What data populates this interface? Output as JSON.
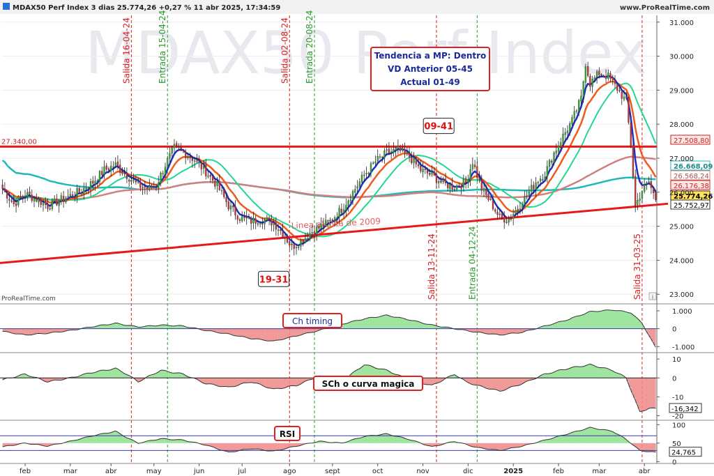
{
  "header": {
    "title": "MDAX50 Perf Index 3 dias 25.774,26 +0,27 % 11 abr 2025, 17:34:59",
    "site": "www.ProRealTime.com",
    "watermark": "MDAX50 Perf Index",
    "provider": "ProRealTime.com"
  },
  "info_box": {
    "line1": "Tendencia a MP: Dentro",
    "line2": "VD Anterior 05-45",
    "line3": "Actual 01-49"
  },
  "colors": {
    "up": "#33aa33",
    "down": "#cc3333",
    "wick": "#222222",
    "trendline": "#e81818",
    "ema_blue": "#1f2fc0",
    "ema_orange": "#f05a1a",
    "sma_green": "#22d890",
    "sma_cyan": "#22b8b8",
    "sma_salmon": "#d08080",
    "osc_pos": "#8fe08f",
    "osc_neg": "#ee8a8a",
    "vline_red": "#d62020",
    "vline_green": "#2a9a2a",
    "hline_blue": "#3a3aa8"
  },
  "chart_data": {
    "type": "candlestick",
    "title": "MDAX50 Perf Index 3 dias",
    "last_value": "25.774,26",
    "change": "+0,27 %",
    "timestamp": "11 abr 2025, 17:34:59",
    "x_labels": [
      "feb",
      "mar",
      "abr",
      "may",
      "jun",
      "jul",
      "ago",
      "sept",
      "oct",
      "nov",
      "dic",
      "2025",
      "feb",
      "mar",
      "abr"
    ],
    "x_label_index": [
      10,
      30,
      48,
      67,
      87,
      106,
      127,
      146,
      166,
      186,
      206,
      226,
      246,
      264,
      284
    ],
    "n_candles": 290,
    "y_axis": {
      "min": 22800,
      "max": 31200,
      "ticks": [
        23000,
        24000,
        25000,
        26000,
        27000,
        28000,
        29000,
        30000,
        31000
      ],
      "tick_labels": [
        "23.000",
        "24.000",
        "25.000",
        "26.000",
        "27.000",
        "28.000",
        "29.000",
        "30.000",
        "31.000"
      ]
    },
    "anchors": [
      [
        0,
        26100
      ],
      [
        5,
        25650
      ],
      [
        10,
        25950
      ],
      [
        15,
        25800
      ],
      [
        20,
        25600
      ],
      [
        25,
        25750
      ],
      [
        30,
        25900
      ],
      [
        35,
        26050
      ],
      [
        40,
        26300
      ],
      [
        45,
        26650
      ],
      [
        50,
        26800
      ],
      [
        55,
        26500
      ],
      [
        60,
        26200
      ],
      [
        65,
        26100
      ],
      [
        68,
        26200
      ],
      [
        72,
        26800
      ],
      [
        76,
        27300
      ],
      [
        80,
        27200
      ],
      [
        85,
        26950
      ],
      [
        90,
        26600
      ],
      [
        95,
        26200
      ],
      [
        100,
        25600
      ],
      [
        105,
        25250
      ],
      [
        110,
        25150
      ],
      [
        115,
        25200
      ],
      [
        120,
        25100
      ],
      [
        124,
        24800
      ],
      [
        128,
        24400
      ],
      [
        132,
        24550
      ],
      [
        136,
        24800
      ],
      [
        140,
        24950
      ],
      [
        145,
        25150
      ],
      [
        150,
        25500
      ],
      [
        155,
        26000
      ],
      [
        160,
        26500
      ],
      [
        165,
        26900
      ],
      [
        170,
        27150
      ],
      [
        175,
        27250
      ],
      [
        180,
        27050
      ],
      [
        185,
        26650
      ],
      [
        190,
        26500
      ],
      [
        195,
        26250
      ],
      [
        200,
        26150
      ],
      [
        205,
        26300
      ],
      [
        208,
        26900
      ],
      [
        212,
        26100
      ],
      [
        216,
        25700
      ],
      [
        220,
        25250
      ],
      [
        224,
        25200
      ],
      [
        228,
        25550
      ],
      [
        232,
        25900
      ],
      [
        236,
        26300
      ],
      [
        240,
        26550
      ],
      [
        244,
        27150
      ],
      [
        248,
        27650
      ],
      [
        252,
        28100
      ],
      [
        256,
        28750
      ],
      [
        258,
        29800
      ],
      [
        260,
        29200
      ],
      [
        264,
        29500
      ],
      [
        268,
        29400
      ],
      [
        272,
        29050
      ],
      [
        276,
        28650
      ],
      [
        278,
        27400
      ],
      [
        280,
        25600
      ],
      [
        283,
        26050
      ],
      [
        286,
        26300
      ],
      [
        289,
        25774
      ]
    ],
    "trendlines": [
      {
        "label": "",
        "type": "horizontal",
        "value": 27340,
        "value_label": "27.340,00"
      },
      {
        "label": "Linea alcista de 2009",
        "type": "rising",
        "from": [
          0,
          23920
        ],
        "to": [
          289,
          25580
        ]
      }
    ],
    "price_labels": [
      {
        "value": 27508.8,
        "text": "27.508,80",
        "style": "red"
      },
      {
        "value": 26668.09,
        "text": "26.668,09",
        "style": "cyan"
      },
      {
        "value": 26568.24,
        "text": "26.568,24",
        "style": "salmon"
      },
      {
        "value": 26176.38,
        "text": "26.176,38",
        "style": "red"
      },
      {
        "value": 25774.26,
        "text": "25.774,26",
        "style": "last"
      },
      {
        "value": 25752.97,
        "text": "25.752,97",
        "style": "plain"
      }
    ],
    "vertical_events": [
      {
        "index": 57,
        "label": "Salida 16-04-24",
        "kind": "salida"
      },
      {
        "index": 73,
        "label": "Entrada 15-04-24",
        "kind": "entrada"
      },
      {
        "index": 127,
        "label": "Salida 02-08-24",
        "kind": "salida"
      },
      {
        "index": 138,
        "label": "Entrada 20-08-24",
        "kind": "entrada"
      },
      {
        "index": 192,
        "label": "Salida 13-11-24",
        "kind": "salida"
      },
      {
        "index": 210,
        "label": "Entrada 04-12-24",
        "kind": "entrada"
      },
      {
        "index": 283,
        "label": "Salida 31-03-25",
        "kind": "salida"
      }
    ],
    "callouts": [
      {
        "text": "09-41",
        "index": 193,
        "value": 27950
      },
      {
        "text": "19-31",
        "index": 120,
        "value": 23450
      }
    ],
    "indicators": [
      {
        "name": "Ch timing",
        "y_ticks": [
          1000,
          0,
          -1000
        ],
        "y_labels": [
          "1.000",
          "0",
          "-1.000"
        ],
        "y_range": [
          -1300,
          1350
        ],
        "anchors": [
          [
            0,
            -150
          ],
          [
            10,
            -350
          ],
          [
            20,
            -250
          ],
          [
            30,
            -100
          ],
          [
            40,
            120
          ],
          [
            50,
            300
          ],
          [
            60,
            100
          ],
          [
            70,
            200
          ],
          [
            80,
            150
          ],
          [
            90,
            -100
          ],
          [
            100,
            -300
          ],
          [
            110,
            -550
          ],
          [
            120,
            -700
          ],
          [
            130,
            -400
          ],
          [
            140,
            -100
          ],
          [
            150,
            250
          ],
          [
            160,
            550
          ],
          [
            170,
            750
          ],
          [
            180,
            500
          ],
          [
            190,
            200
          ],
          [
            200,
            0
          ],
          [
            210,
            -200
          ],
          [
            220,
            -350
          ],
          [
            230,
            -200
          ],
          [
            240,
            150
          ],
          [
            250,
            500
          ],
          [
            260,
            950
          ],
          [
            270,
            1050
          ],
          [
            278,
            900
          ],
          [
            283,
            300
          ],
          [
            289,
            -1050
          ]
        ]
      },
      {
        "name": "SCh o curva magica",
        "y_ticks": [
          10,
          0,
          -10,
          -20
        ],
        "y_labels": [
          "10",
          "0",
          "-10",
          "-20"
        ],
        "y_range": [
          -22,
          13
        ],
        "last_label": "-16,342",
        "anchors": [
          [
            0,
            -1
          ],
          [
            10,
            2
          ],
          [
            20,
            -2
          ],
          [
            30,
            0
          ],
          [
            40,
            3
          ],
          [
            50,
            5
          ],
          [
            55,
            2
          ],
          [
            60,
            -2
          ],
          [
            70,
            4
          ],
          [
            80,
            2
          ],
          [
            90,
            -3
          ],
          [
            100,
            -5
          ],
          [
            110,
            -2
          ],
          [
            120,
            -6
          ],
          [
            130,
            -4
          ],
          [
            140,
            1
          ],
          [
            150,
            -2
          ],
          [
            160,
            7
          ],
          [
            170,
            4
          ],
          [
            180,
            -1
          ],
          [
            190,
            -4
          ],
          [
            200,
            2
          ],
          [
            205,
            -2
          ],
          [
            210,
            -4
          ],
          [
            220,
            -7
          ],
          [
            230,
            -3
          ],
          [
            240,
            2
          ],
          [
            250,
            5
          ],
          [
            260,
            7
          ],
          [
            270,
            4
          ],
          [
            276,
            0
          ],
          [
            282,
            -18
          ],
          [
            286,
            -16
          ],
          [
            289,
            -16.3
          ]
        ]
      },
      {
        "name": "RSI",
        "y_ticks": [
          100,
          50,
          0
        ],
        "y_labels": [
          "100",
          "50",
          "0"
        ],
        "y_range": [
          -5,
          110
        ],
        "bands": [
          70,
          30
        ],
        "last_label": "24,765",
        "anchors": [
          [
            0,
            40
          ],
          [
            10,
            50
          ],
          [
            20,
            42
          ],
          [
            30,
            55
          ],
          [
            40,
            70
          ],
          [
            50,
            82
          ],
          [
            55,
            65
          ],
          [
            60,
            50
          ],
          [
            70,
            62
          ],
          [
            80,
            58
          ],
          [
            90,
            45
          ],
          [
            100,
            25
          ],
          [
            110,
            35
          ],
          [
            120,
            28
          ],
          [
            130,
            42
          ],
          [
            140,
            55
          ],
          [
            150,
            50
          ],
          [
            160,
            68
          ],
          [
            170,
            75
          ],
          [
            180,
            60
          ],
          [
            190,
            40
          ],
          [
            200,
            55
          ],
          [
            210,
            38
          ],
          [
            220,
            30
          ],
          [
            230,
            42
          ],
          [
            240,
            58
          ],
          [
            250,
            75
          ],
          [
            260,
            92
          ],
          [
            270,
            82
          ],
          [
            276,
            60
          ],
          [
            282,
            30
          ],
          [
            289,
            25
          ]
        ]
      }
    ]
  }
}
